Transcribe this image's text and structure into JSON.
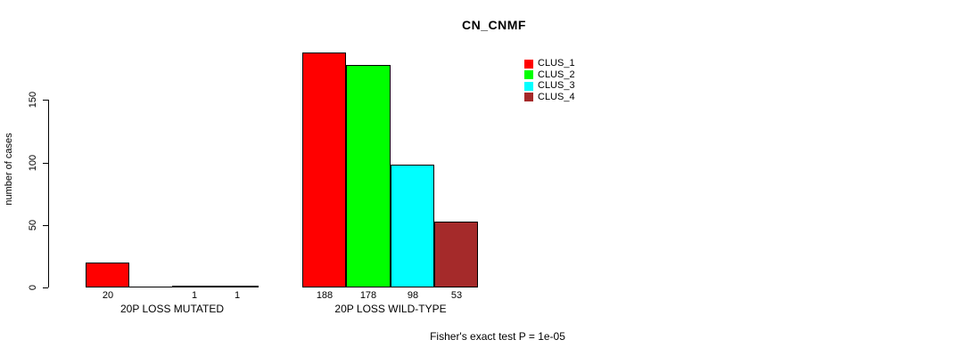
{
  "chart_data": {
    "type": "bar",
    "title": "CN_CNMF",
    "ylabel": "number of cases",
    "xlabel": "",
    "yticks": [
      0,
      50,
      100,
      150
    ],
    "ylim": [
      0,
      188
    ],
    "grid": false,
    "legend_position": "top-right",
    "series_names": [
      "CLUS_1",
      "CLUS_2",
      "CLUS_3",
      "CLUS_4"
    ],
    "series_colors": [
      "#FF0000",
      "#00FF00",
      "#00FFFF",
      "#A52A2A"
    ],
    "groups": [
      {
        "label": "20P LOSS MUTATED",
        "values": [
          20,
          0,
          1,
          1
        ],
        "value_labels": [
          "20",
          "",
          "1",
          "1"
        ]
      },
      {
        "label": "20P LOSS WILD-TYPE",
        "values": [
          188,
          178,
          98,
          53
        ],
        "value_labels": [
          "188",
          "178",
          "98",
          "53"
        ]
      }
    ],
    "annotation": "Fisher's exact test P = 1e-05"
  }
}
